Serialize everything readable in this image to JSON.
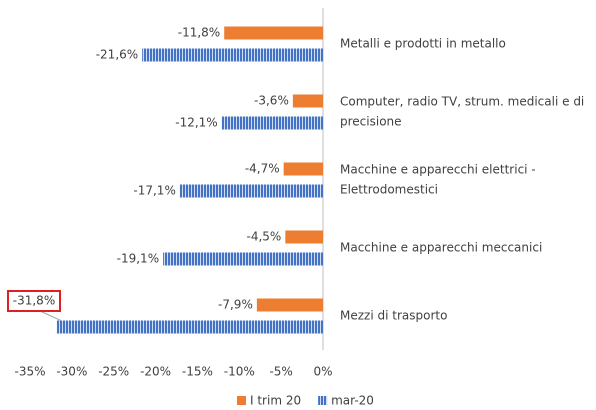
{
  "chart_data": {
    "type": "bar",
    "orientation": "horizontal",
    "categories": [
      [
        "Metalli e prodotti in metallo"
      ],
      [
        "Computer, radio TV, strum. medicali e di",
        "precisione"
      ],
      [
        "Macchine e apparecchi elettrici -",
        "Elettrodomestici"
      ],
      [
        "Macchine e apparecchi meccanici"
      ],
      [
        "Mezzi di trasporto"
      ]
    ],
    "series": [
      {
        "name": "I trim 20",
        "color": "#ed7d31",
        "values": [
          -11.8,
          -3.6,
          -4.7,
          -4.5,
          -7.9
        ],
        "value_labels": [
          "-11,8%",
          "-3,6%",
          "-4,7%",
          "-4,5%",
          "-7,9%"
        ]
      },
      {
        "name": "mar-20",
        "color": "#4472c4",
        "values": [
          -21.6,
          -12.1,
          -17.1,
          -19.1,
          -31.8
        ],
        "value_labels": [
          "-21,6%",
          "-12,1%",
          "-17,1%",
          "-19,1%",
          "-31,8%"
        ]
      }
    ],
    "xlim": [
      -35,
      0
    ],
    "xticks": [
      {
        "value": -35,
        "label": "-35%"
      },
      {
        "value": -30,
        "label": "-30%"
      },
      {
        "value": -25,
        "label": "-25%"
      },
      {
        "value": -20,
        "label": "-20%"
      },
      {
        "value": -15,
        "label": "-15%"
      },
      {
        "value": -10,
        "label": "-10%"
      },
      {
        "value": -5,
        "label": "-5%"
      },
      {
        "value": 0,
        "label": "0%"
      }
    ],
    "legend": "bottom"
  }
}
